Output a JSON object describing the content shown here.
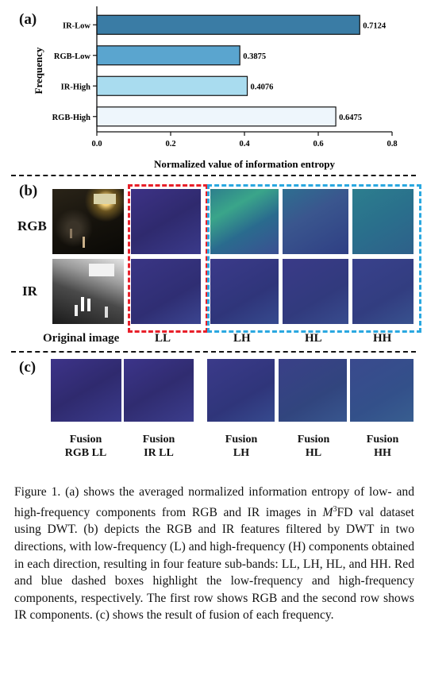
{
  "panel_a": {
    "label": "(a)",
    "chart_data": {
      "type": "bar",
      "orientation": "horizontal",
      "categories": [
        "IR-Low",
        "RGB-Low",
        "IR-High",
        "RGB-High"
      ],
      "values": [
        0.7124,
        0.3875,
        0.4076,
        0.6475
      ],
      "value_labels": [
        "0.7124",
        "0.3875",
        "0.4076",
        "0.6475"
      ],
      "colors": [
        "#3a7ca5",
        "#5aa5cf",
        "#a9dcef",
        "#eef6fc"
      ],
      "xlabel": "Normalized value of information entropy",
      "ylabel": "Frequency",
      "xlim": [
        0,
        0.8
      ],
      "xticks": [
        "0.0",
        "0.2",
        "0.4",
        "0.6",
        "0.8"
      ],
      "grid": false
    }
  },
  "panel_b": {
    "label": "(b)",
    "row_labels": [
      "RGB",
      "IR"
    ],
    "col_labels": [
      "Original image",
      "LL",
      "LH",
      "HL",
      "HH"
    ],
    "box_colors": {
      "low": "#e8202a",
      "high": "#2aa8e0"
    }
  },
  "panel_c": {
    "label": "(c)",
    "items": [
      {
        "line1": "Fusion",
        "line2": "RGB LL"
      },
      {
        "line1": "Fusion",
        "line2": "IR LL"
      },
      {
        "line1": "Fusion",
        "line2": "LH"
      },
      {
        "line1": "Fusion",
        "line2": "HL"
      },
      {
        "line1": "Fusion",
        "line2": "HH"
      }
    ]
  },
  "caption": {
    "part1": "Figure 1. (a) shows the averaged normalized information entropy of low- and high-frequency components from RGB and IR images in ",
    "math": "M",
    "sup": "3",
    "part2": "FD val dataset using DWT. (b) depicts the RGB and IR features filtered by DWT in two directions, with low-frequency (L) and high-frequency (H) components obtained in each direction, resulting in four feature sub-bands: LL, LH, HL, and HH. Red and blue dashed boxes highlight the low-frequency and high-frequency components, respectively. The first row shows RGB and the second row shows IR components. (c) shows the result of fusion of each frequency."
  }
}
